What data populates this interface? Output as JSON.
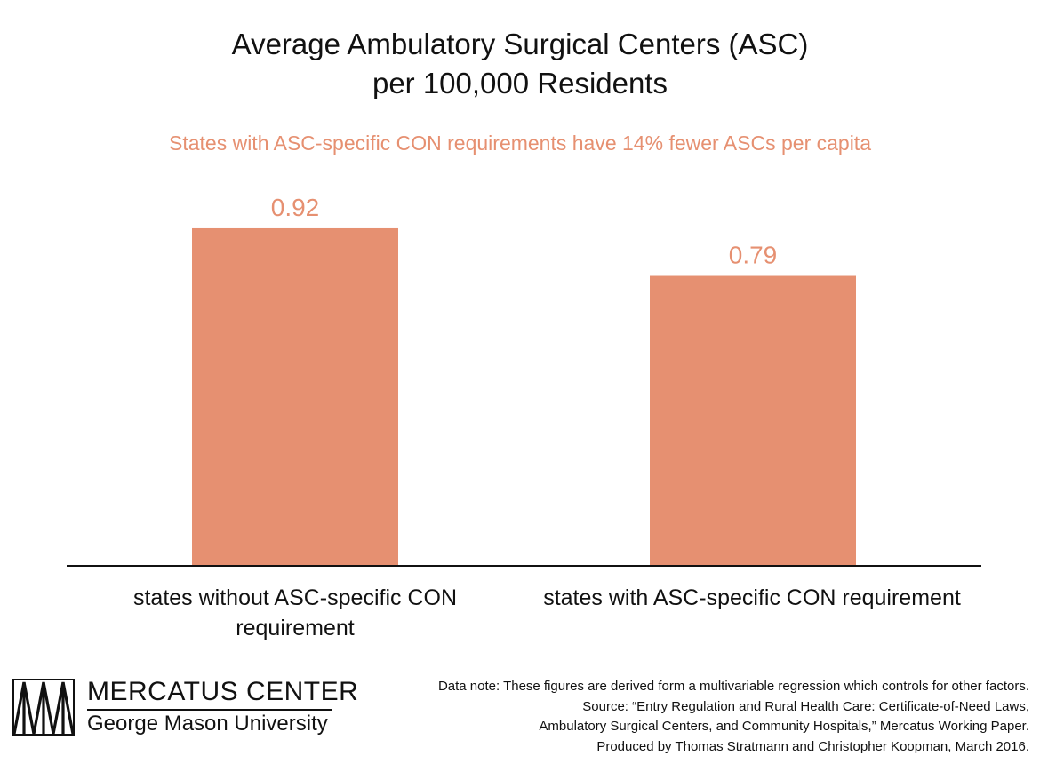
{
  "chart_data": {
    "type": "bar",
    "title": "Average Ambulatory Surgical Centers (ASC) per 100,000 Residents",
    "title_lines": [
      "Average Ambulatory Surgical Centers (ASC)",
      "per 100,000 Residents"
    ],
    "subtitle": "States with ASC-specific CON requirements have 14% fewer ASCs per capita",
    "categories": [
      "states without ASC-specific CON requirement",
      "states with ASC-specific CON requirement"
    ],
    "category_lines": [
      [
        "states without ASC-specific CON",
        "requirement"
      ],
      [
        "states with ASC-specific CON requirement"
      ]
    ],
    "values": [
      0.92,
      0.79
    ],
    "data_labels": [
      "0.92",
      "0.79"
    ],
    "xlabel": "",
    "ylabel": "",
    "ylim": [
      0,
      1.0
    ],
    "grid": false,
    "legend": "none",
    "bar_color": "#e69071",
    "label_color": "#e69071"
  },
  "branding": {
    "org_name": "MERCATUS CENTER",
    "university": "George Mason University",
    "logo_icon": "mercatus-logo-icon"
  },
  "notes": {
    "lines": [
      "Data note: These figures are derived form a multivariable regression which controls for other factors.",
      "Source: “Entry Regulation and Rural Health Care: Certificate-of-Need Laws,",
      "Ambulatory Surgical Centers, and Community Hospitals,” Mercatus Working Paper.",
      "Produced by Thomas Stratmann and Christopher Koopman, March 2016."
    ]
  }
}
